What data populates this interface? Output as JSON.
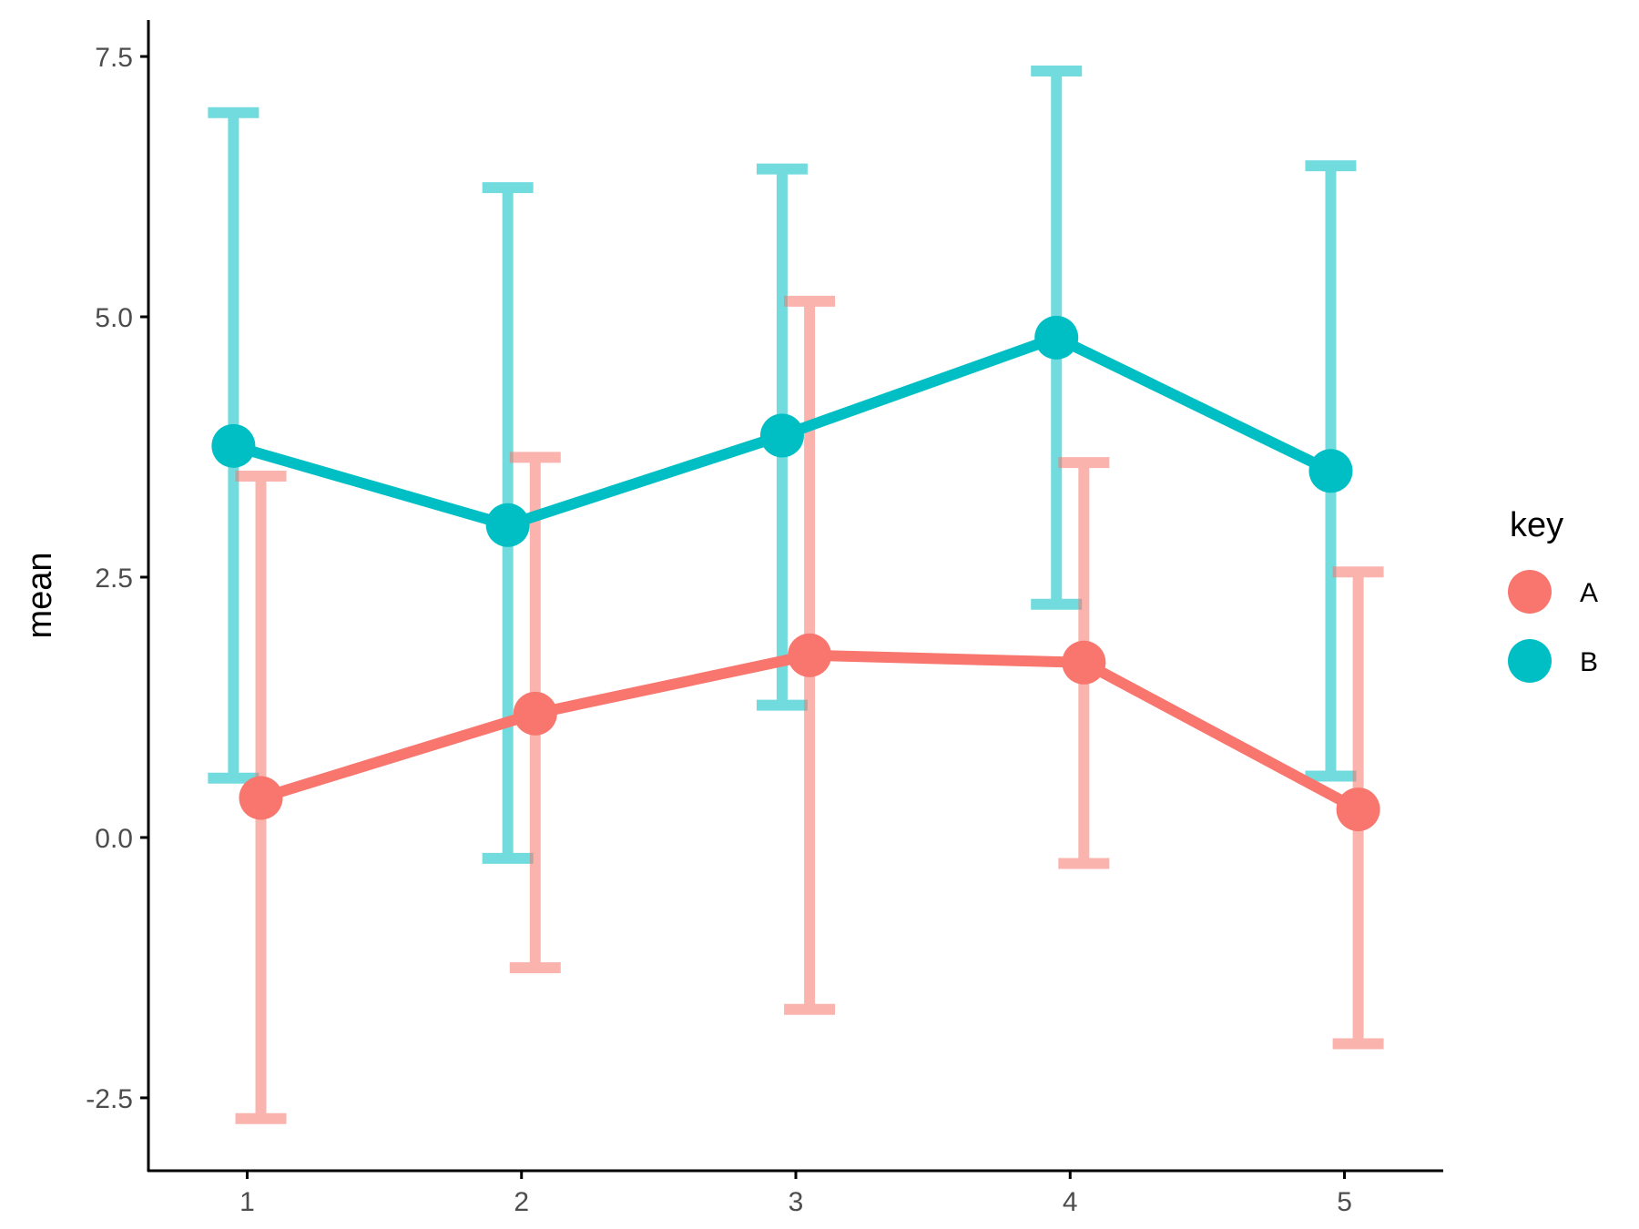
{
  "chart_data": {
    "type": "line",
    "xlabel": "",
    "ylabel": "mean",
    "x": [
      1,
      2,
      3,
      4,
      5
    ],
    "x_tick_labels": [
      "1",
      "2",
      "3",
      "4",
      "5"
    ],
    "y_ticks": [
      -2.5,
      0.0,
      2.5,
      5.0,
      7.5
    ],
    "y_tick_labels": [
      "-2.5",
      "0.0",
      "2.5",
      "5.0",
      "7.5"
    ],
    "xlim": [
      0.64,
      5.36
    ],
    "ylim": [
      -3.2,
      7.85
    ],
    "grid": false,
    "legend": {
      "title": "key",
      "position": "right"
    },
    "series": [
      {
        "name": "A",
        "color": "#F8766D",
        "x_dodge": 0.05,
        "values": [
          0.38,
          1.19,
          1.75,
          1.68,
          0.27
        ],
        "error_low": [
          -2.7,
          -1.25,
          -1.65,
          -0.25,
          -1.98
        ],
        "error_high": [
          3.47,
          3.65,
          5.15,
          3.6,
          2.55
        ]
      },
      {
        "name": "B",
        "color": "#00BFC4",
        "x_dodge": -0.05,
        "values": [
          3.76,
          3.0,
          3.86,
          4.8,
          3.52
        ],
        "error_low": [
          0.57,
          -0.2,
          1.27,
          2.24,
          0.59
        ],
        "error_high": [
          6.96,
          6.24,
          6.42,
          7.36,
          6.45
        ]
      }
    ]
  }
}
